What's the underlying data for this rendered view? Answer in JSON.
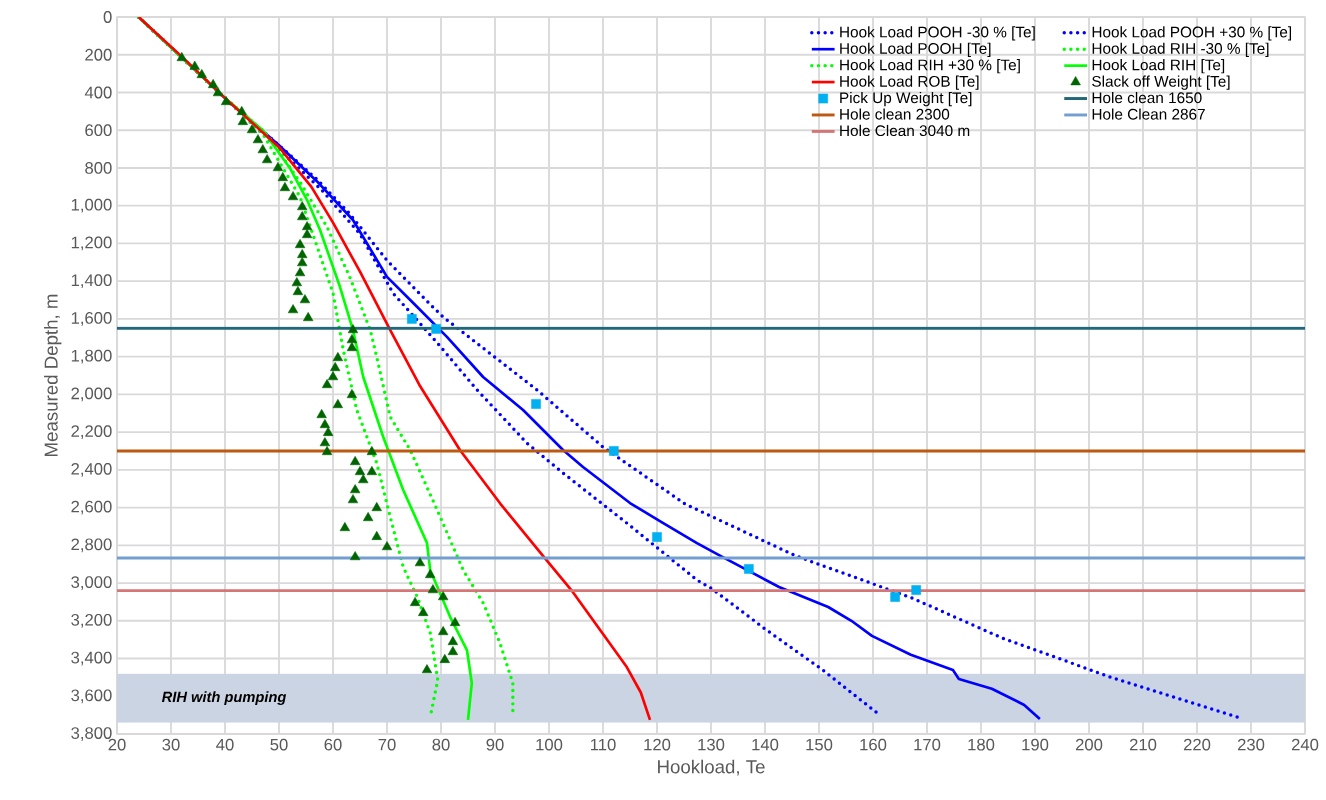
{
  "chart_data": {
    "type": "line",
    "xlabel": "Hookload, Te",
    "ylabel": "Measured Depth, m",
    "xlim": [
      20,
      240
    ],
    "ylim": [
      3800,
      0
    ],
    "xticks": [
      20,
      30,
      40,
      50,
      60,
      70,
      80,
      90,
      100,
      110,
      120,
      130,
      140,
      150,
      160,
      170,
      180,
      190,
      200,
      210,
      220,
      230,
      240
    ],
    "yticks": [
      0,
      200,
      400,
      600,
      800,
      {
        "value": 1000,
        "label": "1,000"
      },
      {
        "value": 1200,
        "label": "1,200"
      },
      {
        "value": 1400,
        "label": "1,400"
      },
      {
        "value": 1600,
        "label": "1,600"
      },
      {
        "value": 1800,
        "label": "1,800"
      },
      {
        "value": 2000,
        "label": "2,000"
      },
      {
        "value": 2200,
        "label": "2,200"
      },
      {
        "value": 2400,
        "label": "2,400"
      },
      {
        "value": 2600,
        "label": "2,600"
      },
      {
        "value": 2800,
        "label": "2,800"
      },
      {
        "value": 3000,
        "label": "3,000"
      },
      {
        "value": 3200,
        "label": "3,200"
      },
      {
        "value": 3400,
        "label": "3,400"
      },
      {
        "value": 3600,
        "label": "3,600"
      },
      {
        "value": 3800,
        "label": "3,800"
      }
    ],
    "grid": true,
    "legend": "top right",
    "series": [
      {
        "name": "Hook Load POOH -30 % [Te]",
        "color": "#0000ff",
        "line_style": "dotted",
        "marker": "none",
        "x": [
          24,
          40,
          50,
          58,
          65,
          71.1,
          79.3,
          86.7,
          95.9,
          102.6,
          114.4,
          127.4,
          130.2,
          140,
          150.7,
          161.5
        ],
        "values": [
          0,
          430,
          700,
          920,
          1150,
          1463,
          1727,
          1977,
          2258,
          2417,
          2682,
          2984,
          3031,
          3243,
          3461,
          3705
        ]
      },
      {
        "name": "Hook Load POOH +30 % [Te]",
        "color": "#0000ff",
        "line_style": "dotted",
        "marker": "none",
        "x": [
          24,
          40,
          50,
          57,
          63,
          70,
          78.5,
          80.4,
          97.8,
          110,
          125.2,
          145.7,
          167.2,
          183.9,
          204.4,
          228.5
        ],
        "values": [
          0,
          430,
          680,
          860,
          1040,
          1290,
          1537,
          1590,
          1977,
          2279,
          2581,
          2856,
          3079,
          3291,
          3503,
          3720
        ]
      },
      {
        "name": "Hook Load POOH [Te]",
        "color": "#0000ff",
        "line_style": "solid",
        "marker": "none",
        "x": [
          24,
          40,
          50,
          57,
          63.7,
          70,
          75,
          81.1,
          87.8,
          95.2,
          102.6,
          106.3,
          115,
          121,
          127.4,
          132,
          142.6,
          151.7,
          156,
          159.8,
          167,
          174.8,
          175.9,
          182,
          188,
          190.9
        ],
        "values": [
          0,
          430,
          680,
          870,
          1076,
          1377,
          1520,
          1695,
          1908,
          2083,
          2295,
          2385,
          2576,
          2680,
          2788,
          2860,
          3021,
          3127,
          3200,
          3280,
          3380,
          3461,
          3508,
          3560,
          3646,
          3720
        ]
      },
      {
        "name": "Hook Load RIH -30 % [Te]",
        "color": "#00ff00",
        "line_style": "dotted",
        "marker": "none",
        "x": [
          24,
          40,
          48,
          54,
          58.9,
          63.1,
          66.9,
          68.1,
          70.6,
          74.3,
          79.3,
          84.1,
          87.8,
          90.9,
          93.3,
          93.3
        ],
        "values": [
          0,
          430,
          630,
          880,
          1113,
          1378,
          1659,
          1802,
          2120,
          2295,
          2613,
          2931,
          3105,
          3317,
          3530,
          3688
        ]
      },
      {
        "name": "Hook Load RIH +30 % [Te]",
        "color": "#00ff00",
        "line_style": "dotted",
        "marker": "none",
        "x": [
          24,
          40,
          47,
          53.9,
          60,
          61.9,
          64.4,
          68.1,
          70.6,
          73,
          75.6,
          78,
          79.4,
          78
        ],
        "values": [
          0,
          430,
          620,
          954,
          1463,
          1765,
          2083,
          2364,
          2650,
          2915,
          3074,
          3264,
          3514,
          3710
        ]
      },
      {
        "name": "Hook Load RIH [Te]",
        "color": "#00ff00",
        "line_style": "solid",
        "marker": "none",
        "x": [
          24,
          40,
          47,
          52,
          55.2,
          57.6,
          61.3,
          63.7,
          65.6,
          69.3,
          73,
          77.4,
          78,
          81.7,
          84.8,
          85.7,
          85
        ],
        "values": [
          0,
          430,
          600,
          800,
          970,
          1129,
          1431,
          1659,
          1908,
          2226,
          2507,
          2788,
          2931,
          3180,
          3355,
          3530,
          3725
        ]
      },
      {
        "name": "Hook Load ROB [Te]",
        "color": "#ff0000",
        "line_style": "solid",
        "marker": "none",
        "x": [
          24,
          32,
          40,
          50,
          56,
          60,
          65,
          70.6,
          76,
          83.5,
          91,
          99,
          104.4,
          110,
          114.4,
          117,
          118.7
        ],
        "values": [
          0,
          210,
          430,
          690,
          900,
          1090,
          1350,
          1660,
          1950,
          2295,
          2580,
          2860,
          3047,
          3270,
          3445,
          3580,
          3725
        ]
      },
      {
        "name": "Slack off Weight [Te]",
        "type": "scatter",
        "color": "#006400",
        "marker": "triangle",
        "x": [
          32,
          34.4,
          35.7,
          37.8,
          38.7,
          40.2,
          43.1,
          43.3,
          45,
          46.1,
          47,
          47.8,
          49.8,
          50.7,
          51.1,
          52.6,
          54.3,
          54.3,
          55.2,
          55.2,
          53.9,
          54.3,
          54.3,
          53.9,
          53.3,
          53.5,
          54.8,
          52.6,
          55.4,
          63.7,
          63.5,
          63.5,
          60.9,
          60.4,
          60,
          58.9,
          63.5,
          60.9,
          57.9,
          58.5,
          59.1,
          58.5,
          58.9,
          67.2,
          64.1,
          67.2,
          65,
          65.6,
          64.1,
          63.7,
          68.1,
          66.5,
          62.2,
          68.1,
          70,
          64.1,
          76.1,
          78,
          78.5,
          80.4,
          75.2,
          76.7,
          82.6,
          80.4,
          82.2,
          82.2,
          80.7,
          77.4
        ],
        "values": [
          217,
          263,
          307,
          360,
          403,
          450,
          503,
          556,
          599,
          652,
          705,
          758,
          800,
          853,
          906,
          954,
          1007,
          1060,
          1113,
          1155,
          1208,
          1261,
          1304,
          1357,
          1410,
          1457,
          1500,
          1553,
          1595,
          1659,
          1712,
          1754,
          1807,
          1860,
          1908,
          1950,
          2003,
          2056,
          2109,
          2162,
          2204,
          2258,
          2305,
          2305,
          2358,
          2411,
          2411,
          2454,
          2507,
          2560,
          2602,
          2655,
          2708,
          2755,
          2809,
          2862,
          2894,
          2957,
          3037,
          3074,
          3105,
          3158,
          3211,
          3259,
          3312,
          3365,
          3407,
          3461
        ]
      },
      {
        "name": "Pick Up Weight [Te]",
        "type": "scatter",
        "color": "#00b0f0",
        "marker": "square",
        "x": [
          74.6,
          79.1,
          97.6,
          112,
          120,
          137,
          164.1,
          168
        ],
        "values": [
          1600,
          1653,
          2051,
          2300,
          2756,
          2925,
          3074,
          3037
        ]
      }
    ],
    "ref_lines": [
      {
        "axis": "y",
        "value": 1650,
        "label": "Hole clean 1650",
        "color": "#236878"
      },
      {
        "axis": "y",
        "value": 2300,
        "label": "Hole clean 2300",
        "color": "#bb5a10"
      },
      {
        "axis": "y",
        "value": 2867,
        "label": "Hole Clean 2867",
        "color": "#729fcf"
      },
      {
        "axis": "y",
        "value": 3040,
        "label": "Hole Clean 3040 m",
        "color": "#d47676"
      }
    ],
    "bands": [
      {
        "axis": "y",
        "from": 3480,
        "to": 3740,
        "label": "RIH with pumping",
        "color": "#cbd4e2"
      }
    ]
  }
}
